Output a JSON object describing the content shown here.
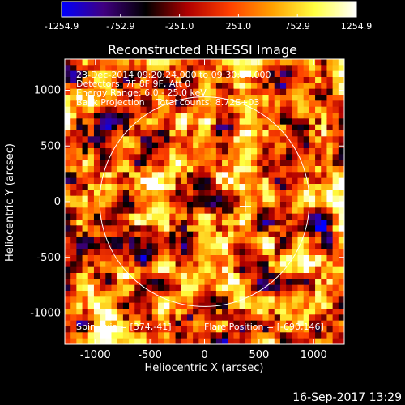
{
  "colorbar": {
    "tick_labels": [
      "-1254.9",
      "-752.9",
      "-251.0",
      "251.0",
      "752.9",
      "1254.9"
    ],
    "colors": [
      "#0000ff",
      "#400080",
      "#000000",
      "#b00000",
      "#ff4000",
      "#ffa000",
      "#ffff40",
      "#ffffff"
    ]
  },
  "chart_data": {
    "type": "heatmap",
    "title": "Reconstructed RHESSI Image",
    "xlabel": "Heliocentric X (arcsec)",
    "ylabel": "Heliocentric Y (arcsec)",
    "xlim": [
      -1280,
      1280
    ],
    "ylim": [
      -1280,
      1280
    ],
    "x_ticks": [
      -1000,
      -500,
      0,
      500,
      1000
    ],
    "y_ticks": [
      -1000,
      -500,
      0,
      500,
      1000
    ],
    "solar_limb_radius": 960,
    "spin_axis": [
      374,
      -41
    ],
    "color_range": [
      -1254.9,
      1254.9
    ],
    "annotations": [
      "23-Dec-2014 09:20:24.000 to 09:30:24.000",
      "Detectors: 7F 8F 9F, Att 0",
      "Energy Range: 6.0 - 25.0 keV",
      "Back Projection    Total counts: 8.72E+03"
    ],
    "footer_annotations": {
      "spin_axis": "Spin Axis = [374,-41]",
      "flare_position": "Flare Position = [-690,146]"
    }
  },
  "timestamp": "16-Sep-2017 13:29"
}
